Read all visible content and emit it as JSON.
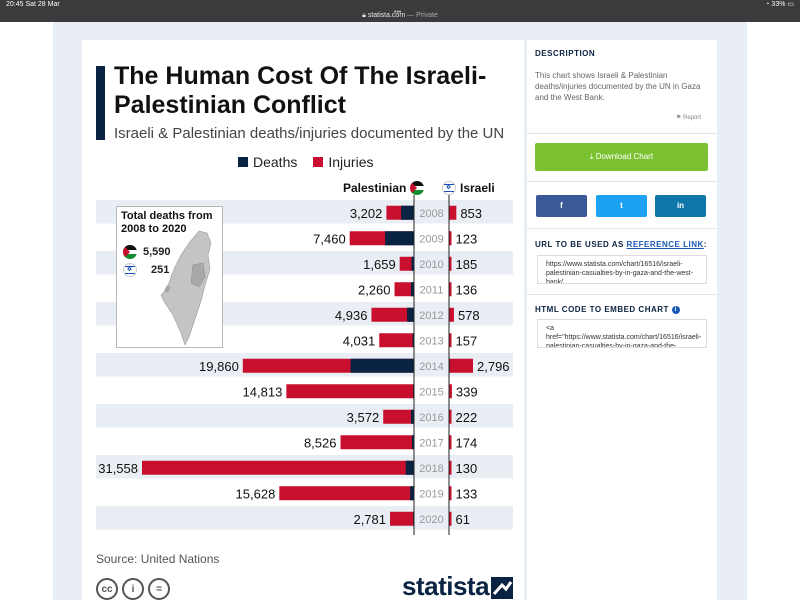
{
  "status": {
    "time": "20:45  Sat 28 Mar",
    "battery": "33%"
  },
  "browser": {
    "url": "statista.com",
    "mode": "— Private"
  },
  "chart_header": {
    "title": "The Human Cost Of The Israeli-Palestinian Conflict",
    "subtitle": "Israeli & Palestinian deaths/injuries documented by the UN",
    "legend": {
      "deaths": "Deaths",
      "injuries": "Injuries"
    },
    "col_palestinian": "Palestinian",
    "col_israeli": "Israeli"
  },
  "inset": {
    "title": "Total deaths from 2008 to 2020",
    "palestinian_total": "5,590",
    "israeli_total": "251"
  },
  "chart_data": {
    "type": "bar",
    "orientation": "horizontal-diverging",
    "title": "The Human Cost Of The Israeli-Palestinian Conflict",
    "subtitle": "Israeli & Palestinian deaths/injuries documented by the UN",
    "categories": [
      "2008",
      "2009",
      "2010",
      "2011",
      "2012",
      "2013",
      "2014",
      "2015",
      "2016",
      "2017",
      "2018",
      "2019",
      "2020"
    ],
    "series": [
      {
        "name": "Palestinian",
        "values": [
          3202,
          7460,
          1659,
          2260,
          4936,
          4031,
          19860,
          14813,
          3572,
          8526,
          31558,
          15628,
          2781
        ]
      },
      {
        "name": "Israeli",
        "values": [
          853,
          123,
          185,
          136,
          578,
          157,
          2796,
          339,
          222,
          174,
          130,
          133,
          61
        ]
      }
    ],
    "palestinian_deaths_estimated": [
      470,
      1050,
      90,
      110,
      250,
      50,
      2300,
      30,
      110,
      75,
      300,
      140,
      30
    ],
    "israeli_deaths_estimated": [
      40,
      10,
      5,
      10,
      20,
      5,
      85,
      10,
      15,
      15,
      10,
      5,
      5
    ],
    "labels_palestinian": [
      "3,202",
      "7,460",
      "1,659",
      "2,260",
      "4,936",
      "4,031",
      "19,860",
      "14,813",
      "3,572",
      "8,526",
      "31,558",
      "15,628",
      "2,781"
    ],
    "labels_israeli": [
      "853",
      "123",
      "185",
      "136",
      "578",
      "157",
      "2,796",
      "339",
      "222",
      "174",
      "130",
      "133",
      "61"
    ],
    "colors": {
      "deaths": "#0b2342",
      "injuries": "#c8102e",
      "stripe": "#e9edf4"
    },
    "grid": false
  },
  "source": "Source: United Nations",
  "brand": "statista",
  "sidebar": {
    "description_head": "DESCRIPTION",
    "description": "This chart shows Israeli & Palestinian deaths/injuries documented by the UN in Gaza and the West Bank.",
    "report": "Report",
    "download": "Download Chart",
    "share_facebook": "f",
    "share_twitter": "t",
    "share_linkedin": "in",
    "url_head": "URL TO BE USED AS",
    "url_link": "REFERENCE LINK",
    "url_value": "https://www.statista.com/chart/16516/israeli-palestinian-casualties-by-in-gaza-and-the-west-bank/",
    "embed_head": "HTML CODE TO EMBED CHART",
    "embed_value": "<a href=\"https://www.statista.com/chart/16516/israeli-palestinian-casualties-by-in-gaza-and-the-"
  }
}
